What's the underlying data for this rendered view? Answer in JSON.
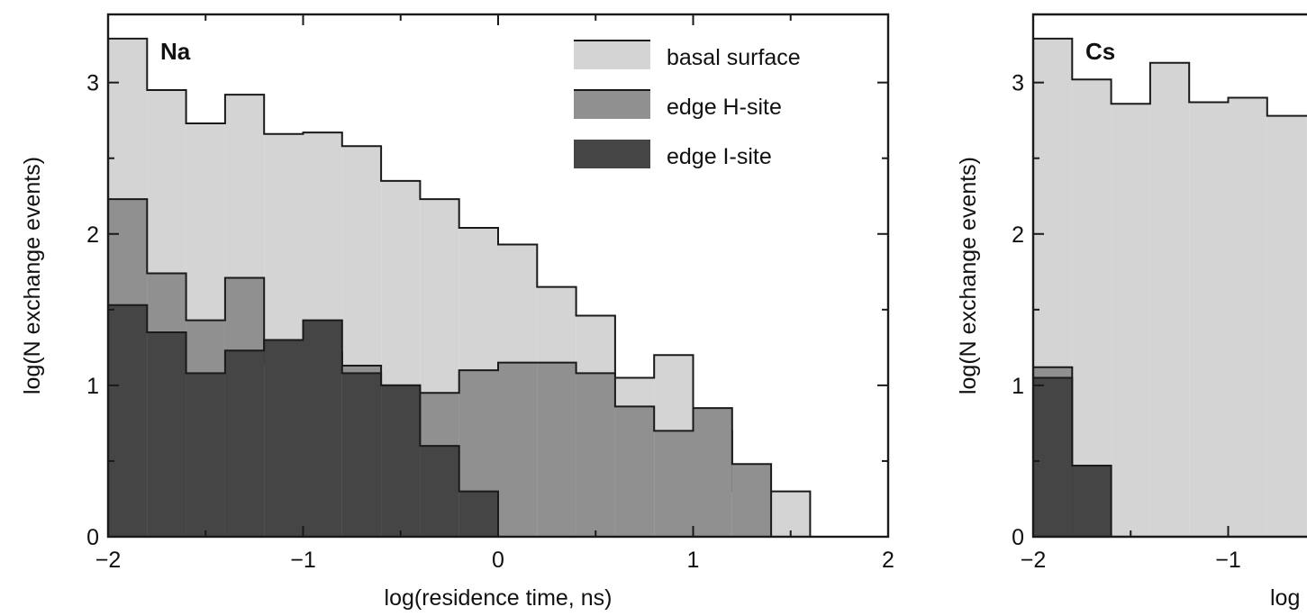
{
  "colors": {
    "basal": "#d4d4d4",
    "edge_h": "#909090",
    "edge_i": "#454545",
    "line": "#1a1a1a"
  },
  "legend": [
    {
      "label": "basal surface",
      "color": "#d4d4d4"
    },
    {
      "label": "edge H-site",
      "color": "#909090"
    },
    {
      "label": "edge I-site",
      "color": "#454545"
    }
  ],
  "chart_data": [
    {
      "type": "histogram",
      "panel_label": "Na",
      "xlabel": "log(residence time, ns)",
      "ylabel": "log(N exchange events)",
      "xlim": [
        -2,
        2
      ],
      "ylim": [
        0,
        3.45
      ],
      "xticks": [
        "−2",
        "−1",
        "0",
        "1",
        "2"
      ],
      "yticks": [
        "0",
        "1",
        "2",
        "3"
      ],
      "bin_start": -2,
      "bin_width": 0.2,
      "series": [
        {
          "name": "basal surface",
          "values": [
            3.29,
            2.95,
            2.73,
            2.92,
            2.66,
            2.67,
            2.58,
            2.35,
            2.23,
            2.04,
            1.93,
            1.65,
            1.46,
            1.05,
            1.2,
            0.7,
            0.3,
            0.3,
            0,
            0
          ]
        },
        {
          "name": "edge H-site",
          "values": [
            2.23,
            1.74,
            1.43,
            1.71,
            1.14,
            1.22,
            1.13,
            1.0,
            0.95,
            1.1,
            1.15,
            1.15,
            1.08,
            0.86,
            0.7,
            0.85,
            0.48,
            0,
            0,
            0
          ]
        },
        {
          "name": "edge I-site",
          "values": [
            1.53,
            1.35,
            1.08,
            1.23,
            1.3,
            1.43,
            1.08,
            1.0,
            0.6,
            0.3,
            0,
            0,
            0,
            0,
            0,
            0,
            0,
            0,
            0,
            0
          ]
        }
      ]
    },
    {
      "type": "histogram",
      "panel_label": "Cs",
      "xlabel": "log",
      "ylabel": "log(N exchange events)",
      "xlim": [
        -2,
        2
      ],
      "ylim": [
        0,
        3.45
      ],
      "xticks": [
        "−2",
        "−1"
      ],
      "yticks": [
        "0",
        "1",
        "2",
        "3"
      ],
      "bin_start": -2,
      "bin_width": 0.2,
      "series": [
        {
          "name": "basal surface",
          "values": [
            3.29,
            3.02,
            2.86,
            3.13,
            2.87,
            2.9,
            2.78,
            2.78
          ]
        },
        {
          "name": "edge H-site",
          "values": [
            1.12,
            0,
            0,
            0,
            0,
            0,
            0,
            0
          ]
        },
        {
          "name": "edge I-site",
          "values": [
            1.05,
            0.47,
            0,
            0,
            0,
            0,
            0,
            0
          ]
        }
      ]
    }
  ]
}
